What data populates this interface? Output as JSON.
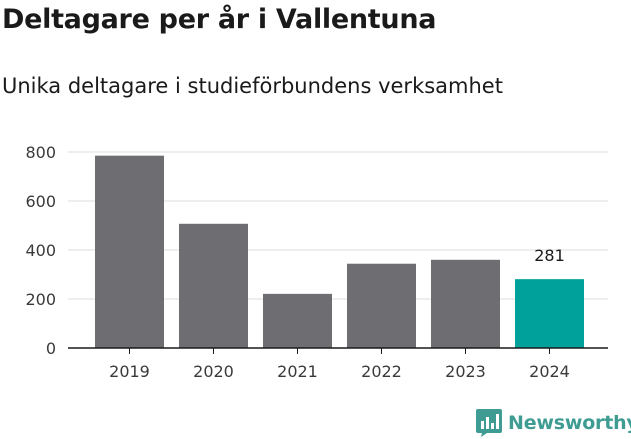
{
  "header": {
    "title": "Deltagare per år i Vallentuna",
    "subtitle": "Unika deltagare i studieförbundens verksamhet"
  },
  "brand": {
    "name": "Newsworthy",
    "logo_icon": "bar-chart-badge-icon",
    "color": "#3f9c93"
  },
  "chart_data": {
    "type": "bar",
    "categories": [
      "2019",
      "2020",
      "2021",
      "2022",
      "2023",
      "2024"
    ],
    "values": [
      785,
      507,
      221,
      344,
      360,
      281
    ],
    "ylim": [
      0,
      800
    ],
    "yticks": [
      "0",
      "200",
      "400",
      "600",
      "800"
    ],
    "grid": true,
    "bar_color": "#6e6d72",
    "highlight_color": "#00a19a",
    "highlight_index": 5,
    "data_labels": [
      {
        "index": 5,
        "text": "281"
      }
    ]
  }
}
